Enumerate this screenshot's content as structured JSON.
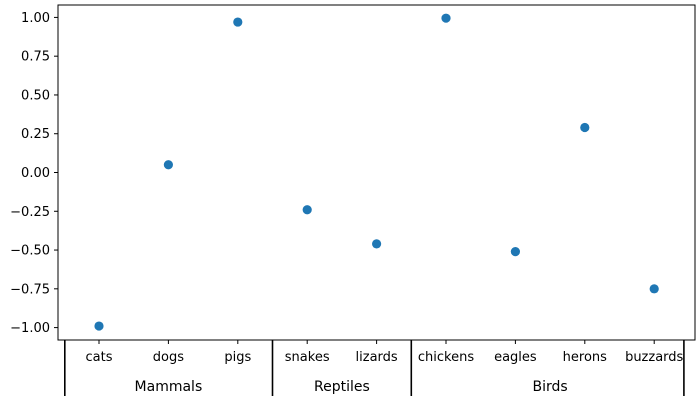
{
  "chart_data": {
    "type": "scatter",
    "title": "",
    "xlabel": "",
    "ylabel": "",
    "categories": [
      "cats",
      "dogs",
      "pigs",
      "snakes",
      "lizards",
      "chickens",
      "eagles",
      "herons",
      "buzzards"
    ],
    "groups": [
      {
        "label": "Mammals",
        "count": 3
      },
      {
        "label": "Reptiles",
        "count": 2
      },
      {
        "label": "Birds",
        "count": 4
      }
    ],
    "values": [
      -0.99,
      0.05,
      0.97,
      -0.24,
      -0.46,
      0.995,
      -0.51,
      0.29,
      -0.75
    ],
    "ylim": [
      -1.08,
      1.08
    ],
    "yticks": [
      -1.0,
      -0.75,
      -0.5,
      -0.25,
      0.0,
      0.25,
      0.5,
      0.75,
      1.0
    ],
    "ytick_labels": [
      "−1.00",
      "−0.75",
      "−0.50",
      "−0.25",
      "0.00",
      "0.25",
      "0.50",
      "0.75",
      "1.00"
    ],
    "grid": false,
    "marker_color": "#1f77b4"
  }
}
